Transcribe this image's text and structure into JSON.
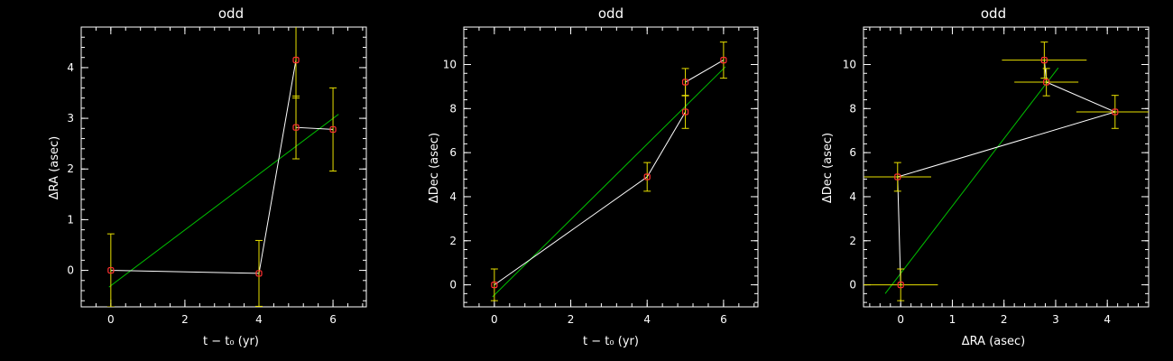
{
  "colors": {
    "background": "#000000",
    "axes": "#ffffff",
    "data_line": "#ffffff",
    "fit_line": "#00c000",
    "markers": "#ff3030",
    "error_bars": "#e8e000"
  },
  "chart_data": [
    {
      "type": "line",
      "title": "odd",
      "xlabel": "t − t₀ (yr)",
      "ylabel": "ΔRA (asec)",
      "xlim": [
        -0.8,
        6.9
      ],
      "ylim": [
        -0.72,
        4.8
      ],
      "xticks": [
        0,
        2,
        4,
        6
      ],
      "yticks": [
        0,
        1,
        2,
        3,
        4
      ],
      "points": [
        {
          "x": 0,
          "y": 0.0,
          "yerr": 0.72,
          "xerr": 0
        },
        {
          "x": 4,
          "y": -0.06,
          "yerr": 0.65,
          "xerr": 0
        },
        {
          "x": 5,
          "y": 4.15,
          "yerr": 0.75,
          "xerr": 0
        },
        {
          "x": 5,
          "y": 2.82,
          "yerr": 0.62,
          "xerr": 0
        },
        {
          "x": 6,
          "y": 2.78,
          "yerr": 0.82,
          "xerr": 0
        }
      ],
      "fit": {
        "x": [
          -0.05,
          6.15
        ],
        "y": [
          -0.33,
          3.08
        ]
      }
    },
    {
      "type": "line",
      "title": "odd",
      "xlabel": "t − t₀ (yr)",
      "ylabel": "ΔDec (asec)",
      "xlim": [
        -0.8,
        6.9
      ],
      "ylim": [
        -1.0,
        11.7
      ],
      "xticks": [
        0,
        2,
        4,
        6
      ],
      "yticks": [
        0,
        2,
        4,
        6,
        8,
        10
      ],
      "points": [
        {
          "x": 0,
          "y": 0.0,
          "yerr": 0.72,
          "xerr": 0
        },
        {
          "x": 4,
          "y": 4.9,
          "yerr": 0.65,
          "xerr": 0
        },
        {
          "x": 5,
          "y": 7.85,
          "yerr": 0.75,
          "xerr": 0
        },
        {
          "x": 5,
          "y": 9.2,
          "yerr": 0.62,
          "xerr": 0
        },
        {
          "x": 6,
          "y": 10.2,
          "yerr": 0.82,
          "xerr": 0
        }
      ],
      "fit": {
        "x": [
          -0.05,
          6.05
        ],
        "y": [
          -0.55,
          9.9
        ]
      }
    },
    {
      "type": "scatter",
      "title": "odd",
      "xlabel": "ΔRA (asec)",
      "ylabel": "ΔDec (asec)",
      "xlim": [
        -0.72,
        4.8
      ],
      "ylim": [
        -1.0,
        11.7
      ],
      "xticks": [
        0,
        1,
        2,
        3,
        4
      ],
      "yticks": [
        0,
        2,
        4,
        6,
        8,
        10
      ],
      "points": [
        {
          "x": 0.0,
          "y": 0.0,
          "xerr": 0.72,
          "yerr": 0.72
        },
        {
          "x": -0.06,
          "y": 4.9,
          "xerr": 0.65,
          "yerr": 0.65
        },
        {
          "x": 4.15,
          "y": 7.85,
          "xerr": 0.75,
          "yerr": 0.75
        },
        {
          "x": 2.82,
          "y": 9.2,
          "xerr": 0.62,
          "yerr": 0.62
        },
        {
          "x": 2.78,
          "y": 10.2,
          "xerr": 0.82,
          "yerr": 0.82
        }
      ],
      "fit": {
        "x": [
          -0.3,
          3.05
        ],
        "y": [
          -0.4,
          9.85
        ]
      }
    }
  ]
}
